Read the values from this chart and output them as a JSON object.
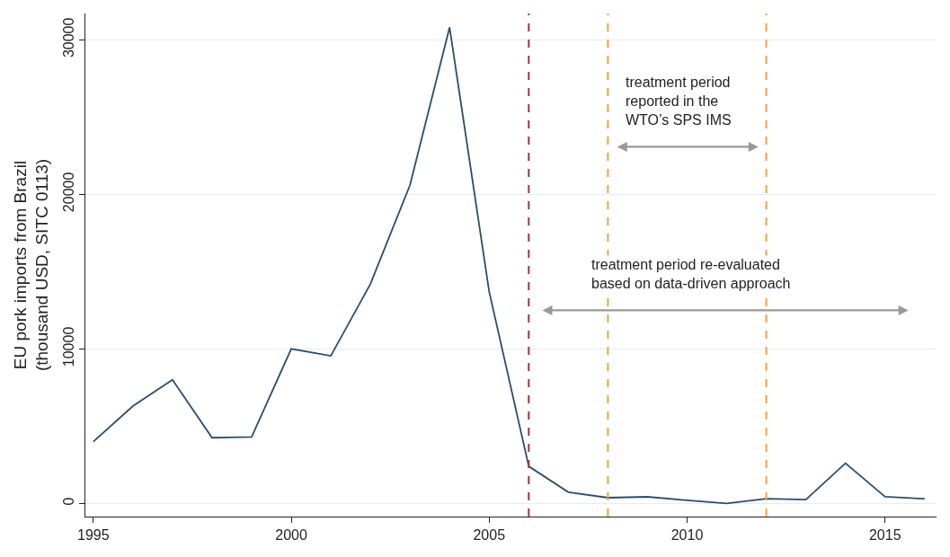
{
  "chart_data": {
    "type": "line",
    "x": [
      1995,
      1996,
      1997,
      1998,
      1999,
      2000,
      2001,
      2002,
      2003,
      2004,
      2005,
      2006,
      2007,
      2008,
      2009,
      2010,
      2011,
      2012,
      2013,
      2014,
      2015,
      2016
    ],
    "series": [
      {
        "color": "#2b4c6f",
        "values": [
          4000,
          6300,
          8000,
          4250,
          4300,
          10000,
          9550,
          14200,
          20600,
          30800,
          13700,
          2400,
          730,
          370,
          430,
          200,
          0,
          300,
          250,
          2600,
          430,
          300
        ]
      }
    ],
    "ylabel": "EU pork imports from Brazil\n(thousand USD, SITC 0113)",
    "xlim": [
      1994.8,
      2016.3
    ],
    "xticks": [
      1995,
      2000,
      2005,
      2010,
      2015
    ],
    "ylim": [
      -850,
      31700
    ],
    "yticks": [
      0,
      10000,
      20000,
      30000
    ],
    "grid": "y",
    "marker": "none",
    "line_style": "solid",
    "ref_lines": [
      {
        "axis": "x",
        "value": 2006,
        "color": "#a3343d",
        "line_style": "dashed"
      },
      {
        "axis": "x",
        "value": 2008,
        "color": "#f5a03c",
        "line_style": "dashed"
      },
      {
        "axis": "x",
        "value": 2012,
        "color": "#f5a03c",
        "line_style": "dashed"
      }
    ],
    "annotations": [
      "treatment period\nreported in the\nWTO’s SPS IMS",
      "treatment period re-evaluated\nbased on data-driven approach"
    ]
  }
}
